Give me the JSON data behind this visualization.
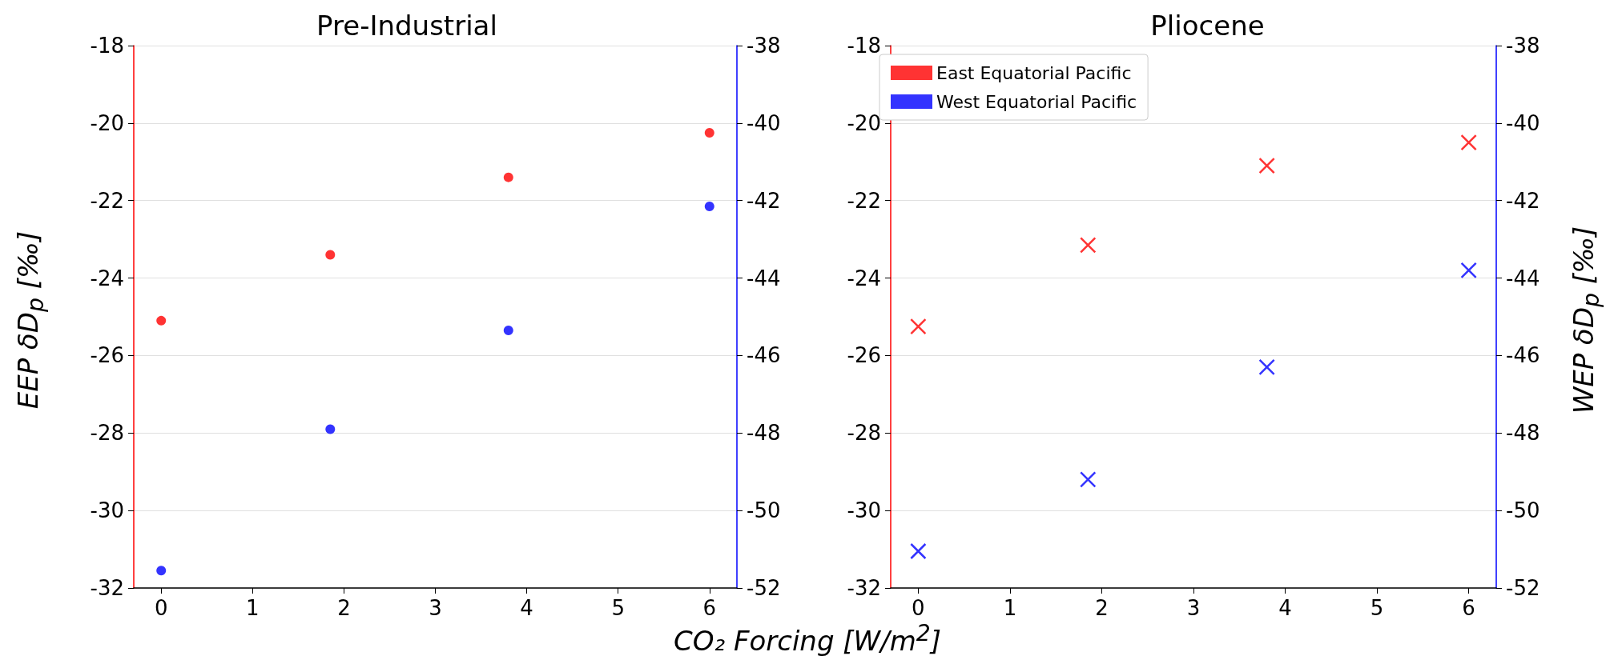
{
  "chart_data": [
    {
      "type": "scatter",
      "title": "Pre-Industrial",
      "ylabel": "EEP δD$_{p}$ [‰]",
      "xlabel": "CO₂ Forcing [W/m$^{2}$]",
      "marker": "circle",
      "grid": "y",
      "xlim": [
        -0.3,
        6.3
      ],
      "xticks": [
        0,
        1,
        2,
        3,
        4,
        5,
        6
      ],
      "ylim": [
        -32,
        -18
      ],
      "yticks": [
        -32,
        -30,
        -28,
        -26,
        -24,
        -22,
        -20,
        -18
      ],
      "y2lim": [
        -52,
        -38
      ],
      "y2ticks": [
        -52,
        -50,
        -48,
        -46,
        -44,
        -42,
        -40,
        -38
      ],
      "series": [
        {
          "color": "#ff0000",
          "x": [
            0,
            1.85,
            3.8,
            6
          ],
          "values": [
            -25.1,
            -23.4,
            -21.4,
            -20.25
          ]
        },
        {
          "color": "#0000ff",
          "axis": "y2",
          "x": [
            0,
            1.85,
            3.8,
            6
          ],
          "values": [
            -51.55,
            -47.9,
            -45.35,
            -42.15
          ]
        }
      ]
    },
    {
      "type": "scatter",
      "title": "Pliocene",
      "y2label": "WEP δD$_{p}$ [‰]",
      "marker": "cross",
      "grid": "y",
      "legend": "top left",
      "xlim": [
        -0.3,
        6.3
      ],
      "xticks": [
        0,
        1,
        2,
        3,
        4,
        5,
        6
      ],
      "ylim": [
        -32,
        -18
      ],
      "yticks": [
        -32,
        -30,
        -28,
        -26,
        -24,
        -22,
        -20,
        -18
      ],
      "y2lim": [
        -52,
        -38
      ],
      "y2ticks": [
        -52,
        -50,
        -48,
        -46,
        -44,
        -42,
        -40,
        -38
      ],
      "series": [
        {
          "name": "East Equatorial Pacific",
          "color": "#ff0000",
          "x": [
            0,
            1.85,
            3.8,
            6
          ],
          "values": [
            -25.25,
            -23.15,
            -21.1,
            -20.5
          ]
        },
        {
          "name": "West Equatorial Pacific",
          "color": "#0000ff",
          "axis": "y2",
          "x": [
            0,
            1.85,
            3.8,
            6
          ],
          "values": [
            -51.05,
            -49.2,
            -46.3,
            -43.8
          ]
        }
      ]
    }
  ]
}
